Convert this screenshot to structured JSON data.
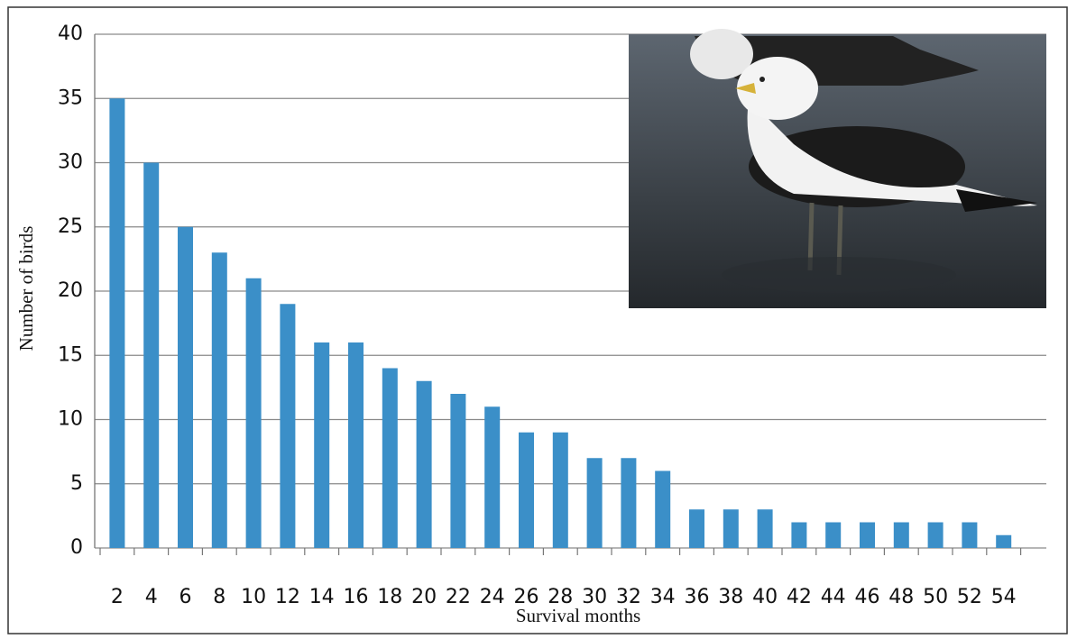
{
  "chart_data": {
    "type": "bar",
    "x_label": "Survival months",
    "y_label": "Number of birds",
    "categories": [
      2,
      4,
      6,
      8,
      10,
      12,
      14,
      16,
      18,
      20,
      22,
      24,
      26,
      28,
      30,
      32,
      34,
      36,
      38,
      40,
      42,
      44,
      46,
      48,
      50,
      52,
      54
    ],
    "values": [
      35,
      30,
      25,
      23,
      21,
      19,
      16,
      16,
      14,
      13,
      12,
      11,
      9,
      9,
      7,
      7,
      6,
      3,
      3,
      3,
      2,
      2,
      2,
      2,
      2,
      2,
      1
    ],
    "color": "#3b8fc8",
    "ylim": [
      0,
      40
    ],
    "yticks": [
      0,
      5,
      10,
      15,
      20,
      25,
      30,
      35,
      40
    ],
    "grid": true
  }
}
